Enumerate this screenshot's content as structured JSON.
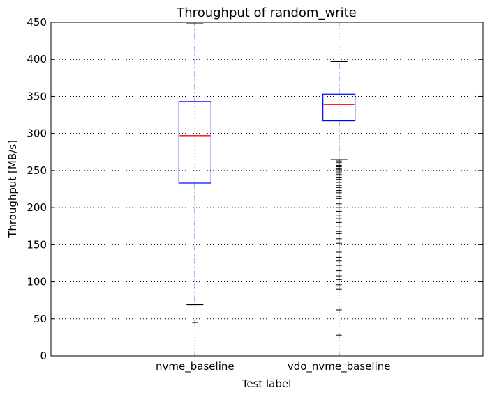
{
  "chart_data": {
    "type": "boxplot",
    "title": "Throughput of random_write",
    "xlabel": "Test label",
    "ylabel": "Throughput [MB/s]",
    "ylim": [
      0,
      450
    ],
    "yticks": [
      0,
      50,
      100,
      150,
      200,
      250,
      300,
      350,
      400,
      450
    ],
    "grid": true,
    "categories": [
      "nvme_baseline",
      "vdo_nvme_baseline"
    ],
    "boxes": [
      {
        "label": "nvme_baseline",
        "whisker_low": 69,
        "q1": 233,
        "median": 297,
        "q3": 343,
        "whisker_high": 448,
        "outliers": [
          45
        ]
      },
      {
        "label": "vdo_nvme_baseline",
        "whisker_low": 265,
        "q1": 317,
        "median": 339,
        "q3": 353,
        "whisker_high": 397,
        "outliers": [
          263,
          261,
          259,
          257,
          255,
          253,
          251,
          249,
          247,
          245,
          243,
          241,
          238,
          234,
          230,
          227,
          223,
          220,
          215,
          212,
          205,
          200,
          195,
          190,
          185,
          180,
          175,
          168,
          165,
          158,
          152,
          147,
          140,
          133,
          128,
          122,
          115,
          108,
          103,
          96,
          90,
          62,
          28
        ]
      }
    ],
    "colors": {
      "box": "#0000ff",
      "median": "#ff0000",
      "whisker": "#0000ff",
      "cap": "#000000",
      "outlier": "#000000"
    }
  }
}
